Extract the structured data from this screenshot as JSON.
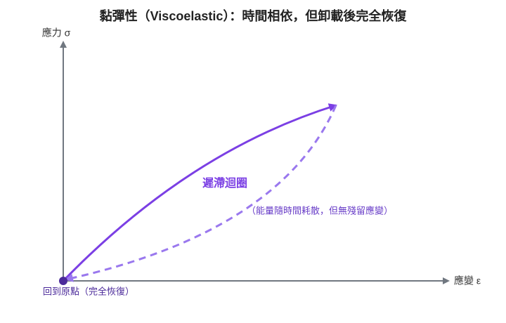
{
  "title": "黏彈性（Viscoelastic）：時間相依，但卸載後完全恢復",
  "axes": {
    "y_label": "應力 σ",
    "x_label": "應變 ε"
  },
  "annotations": {
    "loop": "遲滯迴圈",
    "note": "（能量隨時間耗散，但無殘留應變）",
    "origin": "回到原點（完全恢復）"
  }
}
